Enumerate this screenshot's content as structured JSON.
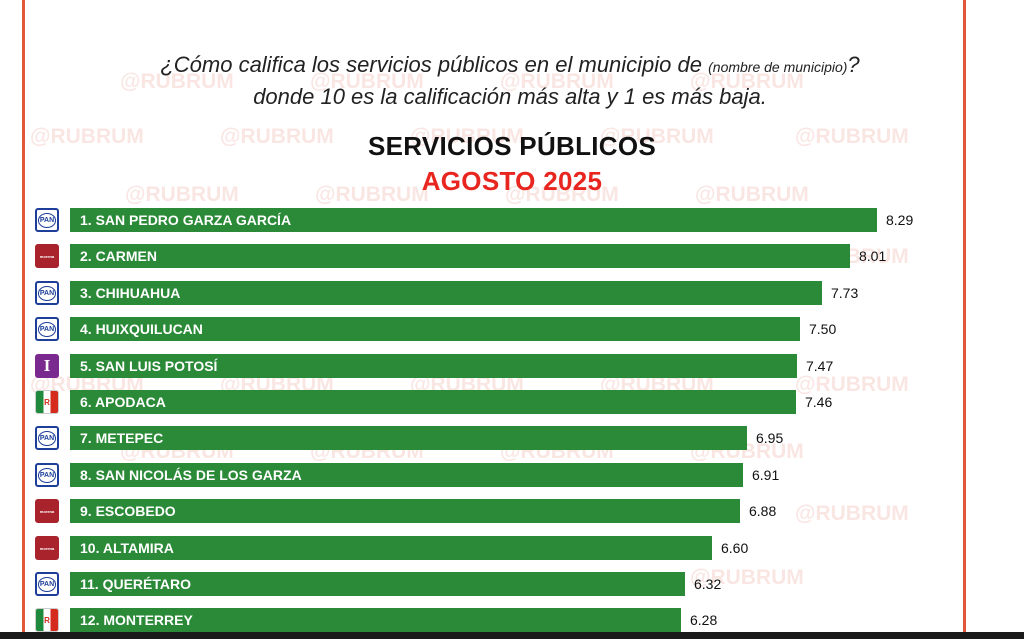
{
  "question": {
    "prefix": "¿Cómo califica los servicios públicos en el municipio de ",
    "placeholder": "(nombre de municipio)",
    "suffix": "?",
    "line2": "donde 10 es la calificación más alta y 1 es más baja."
  },
  "watermark": "@RUBRUM",
  "chart_data": {
    "type": "bar",
    "orientation": "horizontal",
    "title": "SERVICIOS PÚBLICOS",
    "subtitle": "AGOSTO 2025",
    "colors": {
      "bar": "#2b8a38",
      "title": "#111111",
      "subtitle": "#e8261f",
      "frame": "#e2573a"
    },
    "categories": [
      "1. SAN PEDRO GARZA GARCÍA",
      "2. CARMEN",
      "3. CHIHUAHUA",
      "4. HUIXQUILUCAN",
      "5. SAN LUIS POTOSÍ",
      "6. APODACA",
      "7. METEPEC",
      "8. SAN NICOLÁS DE LOS GARZA",
      "9. ESCOBEDO",
      "10. ALTAMIRA",
      "11. QUERÉTARO",
      "12. MONTERREY"
    ],
    "values": [
      8.29,
      8.01,
      7.73,
      7.5,
      7.47,
      7.46,
      6.95,
      6.91,
      6.88,
      6.6,
      6.32,
      6.28
    ],
    "value_labels": [
      "8.29",
      "8.01",
      "7.73",
      "7.50",
      "7.47",
      "7.46",
      "6.95",
      "6.91",
      "6.88",
      "6.60",
      "6.32",
      "6.28"
    ],
    "parties": [
      "PAN",
      "MORENA",
      "PAN",
      "PAN",
      "IND",
      "PRI",
      "PAN",
      "PAN",
      "MORENA",
      "MORENA",
      "PAN",
      "PRI"
    ],
    "party_icons": [
      "pan-logo-icon",
      "morena-logo-icon",
      "pan-logo-icon",
      "pan-logo-icon",
      "independent-logo-icon",
      "pri-logo-icon",
      "pan-logo-icon",
      "pan-logo-icon",
      "morena-logo-icon",
      "morena-logo-icon",
      "pan-logo-icon",
      "pri-logo-icon"
    ]
  }
}
